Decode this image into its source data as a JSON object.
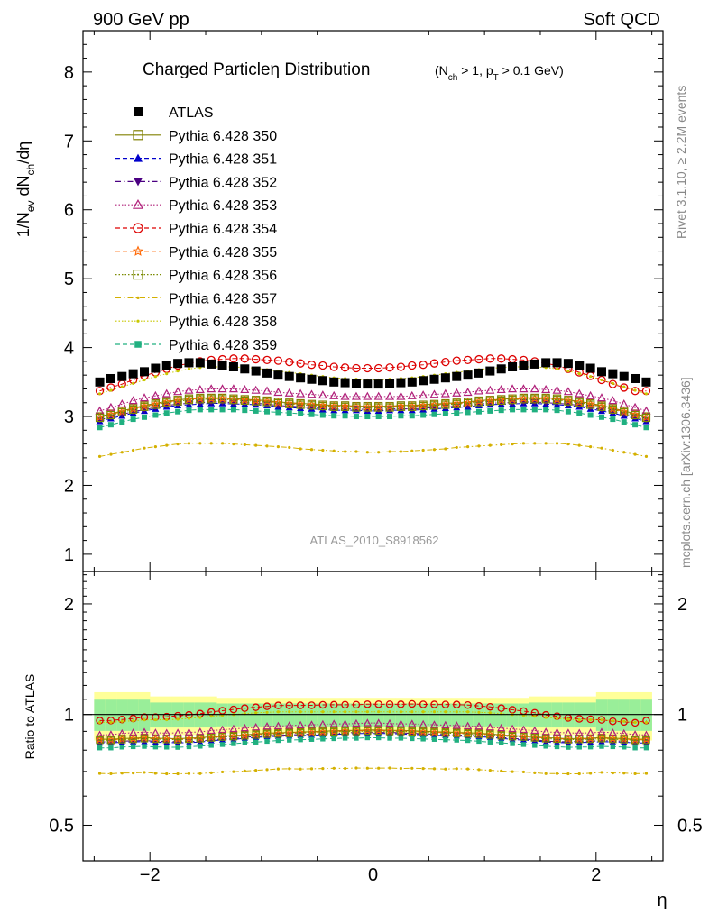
{
  "header": {
    "left": "900 GeV pp",
    "right": "Soft QCD"
  },
  "side_text": {
    "rivet": "Rivet 3.1.10, ≥ 2.2M events",
    "mcplots": "mcplots.cern.ch [arXiv:1306.3436]"
  },
  "chart_data": [
    {
      "type": "scatter",
      "title": "Charged Particleη Distribution",
      "title_suffix": "(N_ch > 1, p_T > 0.1 GeV)",
      "ylabel": "1/N_ev dN_ch/dη",
      "analysis_label": "ATLAS_2010_S8918562",
      "xlim": [
        -2.6,
        2.6
      ],
      "ylim": [
        0.75,
        8.6
      ],
      "yticks": [
        1,
        2,
        3,
        4,
        5,
        6,
        7,
        8
      ],
      "x": [
        -2.45,
        -2.35,
        -2.25,
        -2.15,
        -2.05,
        -1.95,
        -1.85,
        -1.75,
        -1.65,
        -1.55,
        -1.45,
        -1.35,
        -1.25,
        -1.15,
        -1.05,
        -0.95,
        -0.85,
        -0.75,
        -0.65,
        -0.55,
        -0.45,
        -0.35,
        -0.25,
        -0.15,
        -0.05,
        0.05,
        0.15,
        0.25,
        0.35,
        0.45,
        0.55,
        0.65,
        0.75,
        0.85,
        0.95,
        1.05,
        1.15,
        1.25,
        1.35,
        1.45,
        1.55,
        1.65,
        1.75,
        1.85,
        1.95,
        2.05,
        2.15,
        2.25,
        2.35,
        2.45
      ],
      "series": [
        {
          "name": "ATLAS",
          "color": "#000000",
          "marker": "filled-square",
          "line": "none",
          "values": [
            3.5,
            3.55,
            3.58,
            3.62,
            3.65,
            3.7,
            3.74,
            3.77,
            3.78,
            3.78,
            3.76,
            3.74,
            3.72,
            3.69,
            3.66,
            3.63,
            3.6,
            3.58,
            3.56,
            3.54,
            3.52,
            3.5,
            3.49,
            3.48,
            3.47,
            3.47,
            3.48,
            3.49,
            3.5,
            3.52,
            3.54,
            3.56,
            3.58,
            3.6,
            3.63,
            3.66,
            3.69,
            3.72,
            3.74,
            3.76,
            3.78,
            3.78,
            3.77,
            3.74,
            3.7,
            3.65,
            3.62,
            3.58,
            3.55,
            3.5
          ]
        },
        {
          "name": "Pythia 6.428 350",
          "color": "#808000",
          "marker": "open-square",
          "line": "solid",
          "values": [
            3.0,
            3.04,
            3.08,
            3.12,
            3.16,
            3.19,
            3.22,
            3.24,
            3.26,
            3.27,
            3.27,
            3.27,
            3.26,
            3.25,
            3.24,
            3.23,
            3.21,
            3.2,
            3.19,
            3.18,
            3.17,
            3.16,
            3.16,
            3.15,
            3.15,
            3.15,
            3.15,
            3.16,
            3.16,
            3.17,
            3.18,
            3.19,
            3.2,
            3.21,
            3.23,
            3.24,
            3.25,
            3.26,
            3.27,
            3.27,
            3.27,
            3.26,
            3.24,
            3.22,
            3.19,
            3.16,
            3.12,
            3.08,
            3.04,
            3.0
          ]
        },
        {
          "name": "Pythia 6.428 351",
          "color": "#0000cc",
          "marker": "filled-triangle-up",
          "line": "dashed",
          "values": [
            2.93,
            2.97,
            3.01,
            3.05,
            3.08,
            3.11,
            3.14,
            3.16,
            3.17,
            3.18,
            3.19,
            3.19,
            3.18,
            3.18,
            3.17,
            3.16,
            3.14,
            3.13,
            3.12,
            3.11,
            3.1,
            3.09,
            3.09,
            3.09,
            3.08,
            3.08,
            3.09,
            3.09,
            3.09,
            3.1,
            3.11,
            3.12,
            3.13,
            3.14,
            3.16,
            3.17,
            3.18,
            3.18,
            3.19,
            3.19,
            3.18,
            3.17,
            3.16,
            3.14,
            3.11,
            3.08,
            3.05,
            3.01,
            2.97,
            2.93
          ]
        },
        {
          "name": "Pythia 6.428 352",
          "color": "#4b0082",
          "marker": "filled-triangle-down",
          "line": "dashdot",
          "values": [
            2.95,
            2.99,
            3.03,
            3.07,
            3.1,
            3.13,
            3.16,
            3.18,
            3.19,
            3.2,
            3.21,
            3.21,
            3.2,
            3.2,
            3.19,
            3.18,
            3.16,
            3.15,
            3.14,
            3.13,
            3.12,
            3.11,
            3.11,
            3.11,
            3.1,
            3.1,
            3.11,
            3.11,
            3.11,
            3.12,
            3.13,
            3.14,
            3.15,
            3.16,
            3.18,
            3.19,
            3.2,
            3.2,
            3.21,
            3.21,
            3.2,
            3.19,
            3.18,
            3.16,
            3.13,
            3.1,
            3.07,
            3.03,
            2.99,
            2.95
          ]
        },
        {
          "name": "Pythia 6.428 353",
          "color": "#b0207a",
          "marker": "open-triangle-up",
          "line": "dotted",
          "values": [
            3.08,
            3.13,
            3.18,
            3.23,
            3.27,
            3.3,
            3.33,
            3.36,
            3.38,
            3.39,
            3.4,
            3.4,
            3.4,
            3.39,
            3.38,
            3.37,
            3.35,
            3.34,
            3.33,
            3.32,
            3.31,
            3.3,
            3.29,
            3.29,
            3.29,
            3.29,
            3.29,
            3.29,
            3.3,
            3.31,
            3.32,
            3.33,
            3.34,
            3.35,
            3.37,
            3.38,
            3.39,
            3.4,
            3.4,
            3.4,
            3.39,
            3.38,
            3.36,
            3.33,
            3.3,
            3.27,
            3.23,
            3.18,
            3.13,
            3.08
          ]
        },
        {
          "name": "Pythia 6.428 354",
          "color": "#dd0000",
          "marker": "open-circle",
          "line": "dashed",
          "values": [
            3.37,
            3.42,
            3.47,
            3.53,
            3.59,
            3.64,
            3.69,
            3.74,
            3.77,
            3.8,
            3.82,
            3.83,
            3.84,
            3.84,
            3.83,
            3.82,
            3.81,
            3.79,
            3.77,
            3.75,
            3.74,
            3.72,
            3.71,
            3.7,
            3.7,
            3.7,
            3.71,
            3.72,
            3.74,
            3.75,
            3.77,
            3.79,
            3.81,
            3.82,
            3.83,
            3.84,
            3.84,
            3.83,
            3.82,
            3.8,
            3.77,
            3.74,
            3.69,
            3.64,
            3.59,
            3.53,
            3.47,
            3.42,
            3.37,
            3.37
          ]
        },
        {
          "name": "Pythia 6.428 355",
          "color": "#ff6600",
          "marker": "open-star",
          "line": "dashed",
          "values": [
            2.99,
            3.03,
            3.07,
            3.11,
            3.15,
            3.18,
            3.21,
            3.23,
            3.25,
            3.26,
            3.26,
            3.26,
            3.25,
            3.24,
            3.23,
            3.22,
            3.2,
            3.19,
            3.18,
            3.17,
            3.16,
            3.15,
            3.15,
            3.14,
            3.14,
            3.14,
            3.14,
            3.15,
            3.15,
            3.16,
            3.17,
            3.18,
            3.19,
            3.2,
            3.22,
            3.23,
            3.24,
            3.25,
            3.26,
            3.26,
            3.26,
            3.25,
            3.23,
            3.21,
            3.18,
            3.15,
            3.11,
            3.07,
            3.03,
            2.99
          ]
        },
        {
          "name": "Pythia 6.428 356",
          "color": "#7a8a00",
          "marker": "open-square-dot",
          "line": "dotted",
          "values": [
            2.98,
            3.02,
            3.06,
            3.1,
            3.14,
            3.17,
            3.2,
            3.22,
            3.24,
            3.25,
            3.25,
            3.25,
            3.24,
            3.23,
            3.22,
            3.21,
            3.19,
            3.18,
            3.17,
            3.16,
            3.15,
            3.14,
            3.14,
            3.13,
            3.13,
            3.13,
            3.13,
            3.14,
            3.14,
            3.15,
            3.16,
            3.17,
            3.18,
            3.19,
            3.21,
            3.22,
            3.23,
            3.24,
            3.25,
            3.25,
            3.25,
            3.24,
            3.22,
            3.2,
            3.17,
            3.14,
            3.1,
            3.06,
            3.02,
            2.98
          ]
        },
        {
          "name": "Pythia 6.428 357",
          "color": "#d4b000",
          "marker": "small-dot",
          "line": "dashdot",
          "values": [
            2.42,
            2.45,
            2.48,
            2.51,
            2.54,
            2.56,
            2.58,
            2.6,
            2.61,
            2.61,
            2.61,
            2.61,
            2.6,
            2.59,
            2.58,
            2.57,
            2.56,
            2.55,
            2.53,
            2.52,
            2.51,
            2.5,
            2.49,
            2.49,
            2.48,
            2.48,
            2.49,
            2.49,
            2.5,
            2.51,
            2.52,
            2.53,
            2.55,
            2.56,
            2.57,
            2.58,
            2.59,
            2.6,
            2.61,
            2.61,
            2.61,
            2.61,
            2.6,
            2.58,
            2.56,
            2.54,
            2.51,
            2.48,
            2.45,
            2.42
          ]
        },
        {
          "name": "Pythia 6.428 358",
          "color": "#c8c800",
          "marker": "small-dot",
          "line": "dotted",
          "values": [
            3.33,
            3.38,
            3.43,
            3.48,
            3.53,
            3.58,
            3.62,
            3.66,
            3.69,
            3.71,
            3.72,
            3.72,
            3.72,
            3.71,
            3.7,
            3.68,
            3.66,
            3.64,
            3.62,
            3.6,
            3.58,
            3.56,
            3.55,
            3.54,
            3.53,
            3.53,
            3.54,
            3.55,
            3.56,
            3.58,
            3.6,
            3.62,
            3.64,
            3.66,
            3.68,
            3.7,
            3.71,
            3.72,
            3.72,
            3.72,
            3.71,
            3.69,
            3.66,
            3.62,
            3.58,
            3.53,
            3.48,
            3.43,
            3.38,
            3.33
          ]
        },
        {
          "name": "Pythia 6.428 359",
          "color": "#20b080",
          "marker": "filled-square-small",
          "line": "dashed",
          "values": [
            2.84,
            2.88,
            2.92,
            2.96,
            2.99,
            3.02,
            3.05,
            3.07,
            3.09,
            3.1,
            3.1,
            3.1,
            3.1,
            3.09,
            3.08,
            3.07,
            3.06,
            3.05,
            3.04,
            3.03,
            3.02,
            3.01,
            3.01,
            3.0,
            3.0,
            3.0,
            3.0,
            3.01,
            3.01,
            3.02,
            3.03,
            3.04,
            3.05,
            3.06,
            3.07,
            3.08,
            3.09,
            3.1,
            3.1,
            3.1,
            3.1,
            3.09,
            3.07,
            3.05,
            3.02,
            2.99,
            2.96,
            2.92,
            2.88,
            2.84
          ]
        }
      ]
    },
    {
      "type": "scatter",
      "ylabel": "Ratio to ATLAS",
      "xlabel": "η",
      "xlim": [
        -2.6,
        2.6
      ],
      "ylim": [
        0.4,
        2.45
      ],
      "yticks": [
        0.5,
        1,
        2
      ],
      "ytick_labels": [
        "0.5",
        "1",
        "2"
      ],
      "xticks": [
        -2,
        0,
        2
      ],
      "xtick_labels": [
        "−2",
        "0",
        "2"
      ],
      "band_colors": {
        "inner": "#99ee99",
        "outer": "#ffff99"
      }
    }
  ]
}
